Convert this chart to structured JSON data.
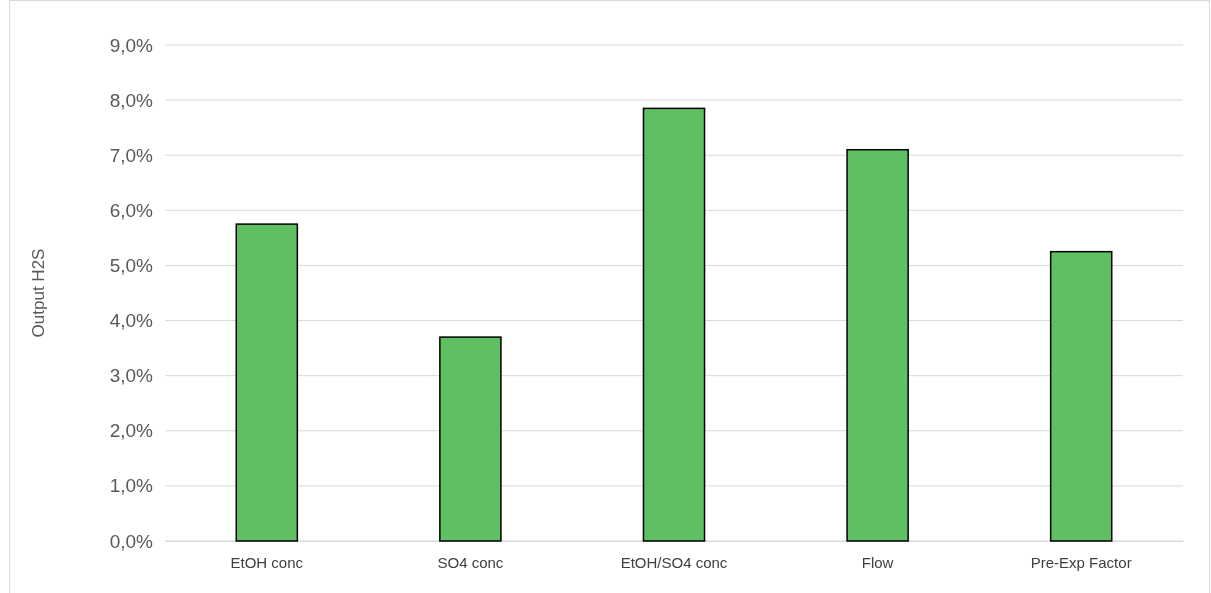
{
  "chart_data": {
    "type": "bar",
    "ylabel": "Output H2S",
    "categories": [
      "EtOH conc",
      "SO4 conc",
      "EtOH/SO4 conc",
      "Flow",
      "Pre-Exp Factor"
    ],
    "values": [
      5.75,
      3.7,
      7.85,
      7.1,
      5.25
    ],
    "color": "#5fbf63",
    "ylim": [
      0,
      9
    ],
    "yticks": [
      {
        "value": 0,
        "label": "0,0%"
      },
      {
        "value": 1,
        "label": "1,0%"
      },
      {
        "value": 2,
        "label": "2,0%"
      },
      {
        "value": 3,
        "label": "3,0%"
      },
      {
        "value": 4,
        "label": "4,0%"
      },
      {
        "value": 5,
        "label": "5,0%"
      },
      {
        "value": 6,
        "label": "6,0%"
      },
      {
        "value": 7,
        "label": "7,0%"
      },
      {
        "value": 8,
        "label": "8,0%"
      },
      {
        "value": 9,
        "label": "9,0%"
      }
    ],
    "grid": "y"
  }
}
